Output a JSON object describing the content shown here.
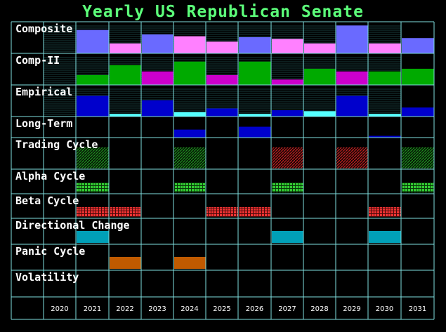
{
  "chart_data": {
    "type": "heatmap",
    "title": "Yearly US Republican Senate",
    "years": [
      "2020",
      "2021",
      "2022",
      "2023",
      "2024",
      "2025",
      "2026",
      "2027",
      "2028",
      "2029",
      "2030",
      "2031"
    ],
    "rows": [
      {
        "name": "Composite",
        "kind": "bar",
        "colors": [
          "#6a6aff",
          "#ff80ff"
        ],
        "values": [
          null,
          2.6,
          1.1,
          2.1,
          1.9,
          1.3,
          1.8,
          1.6,
          1.1,
          3.1,
          1.1,
          1.7
        ],
        "color_index": [
          null,
          0,
          1,
          0,
          1,
          1,
          0,
          1,
          1,
          0,
          1,
          0
        ]
      },
      {
        "name": "Comp-II",
        "kind": "bar",
        "colors": [
          "#00aa00",
          "#cc00cc"
        ],
        "values": [
          null,
          1.1,
          2.2,
          1.5,
          2.6,
          1.1,
          2.6,
          0.6,
          1.8,
          1.5,
          1.5,
          1.8
        ],
        "color_index": [
          null,
          0,
          0,
          1,
          0,
          1,
          0,
          1,
          0,
          1,
          0,
          0
        ]
      },
      {
        "name": "Empirical",
        "kind": "bar",
        "colors": [
          "#0000cc",
          "#55ffff"
        ],
        "values": [
          null,
          2.3,
          0.3,
          1.8,
          0.5,
          0.9,
          0.3,
          0.7,
          0.6,
          2.3,
          0.3,
          1.0
        ],
        "color_index": [
          null,
          0,
          1,
          0,
          1,
          0,
          1,
          0,
          1,
          0,
          1,
          0
        ]
      },
      {
        "name": "Long-Term",
        "kind": "bar",
        "colors": [
          "#0000cc"
        ],
        "values": [
          null,
          0,
          0,
          0,
          1.4,
          0,
          1.9,
          0,
          0,
          0,
          0.3,
          0
        ],
        "color_index": [
          null,
          0,
          0,
          0,
          0,
          0,
          0,
          0,
          0,
          0,
          0,
          0
        ]
      },
      {
        "name": "Trading Cycle",
        "kind": "pattern",
        "style": "hatch",
        "active": [
          0,
          1,
          0,
          0,
          1,
          0,
          0,
          2,
          0,
          2,
          0,
          1
        ],
        "colors": [
          "",
          "#1f8f1f",
          "#c02020"
        ]
      },
      {
        "name": "Alpha Cycle",
        "kind": "pattern",
        "style": "grid",
        "active": [
          0,
          1,
          0,
          0,
          1,
          0,
          0,
          1,
          0,
          0,
          0,
          1
        ],
        "colors": [
          "",
          "#33cc33"
        ]
      },
      {
        "name": "Beta Cycle",
        "kind": "pattern",
        "style": "grid",
        "active": [
          0,
          1,
          1,
          0,
          0,
          1,
          1,
          0,
          0,
          0,
          1,
          0
        ],
        "colors": [
          "",
          "#ee3333"
        ]
      },
      {
        "name": "Directional Change",
        "kind": "block",
        "active": [
          0,
          1,
          0,
          0,
          0,
          0,
          0,
          1,
          0,
          0,
          1,
          0
        ],
        "colors": [
          "",
          "#00a0b8"
        ]
      },
      {
        "name": "Panic Cycle",
        "kind": "block",
        "active": [
          0,
          0,
          1,
          0,
          1,
          0,
          0,
          0,
          0,
          0,
          0,
          0
        ],
        "colors": [
          "",
          "#c05a00"
        ]
      },
      {
        "name": "Volatility",
        "kind": "block",
        "active": [
          0,
          0,
          0,
          0,
          0,
          0,
          0,
          0,
          0,
          0,
          0,
          0
        ],
        "colors": [
          ""
        ]
      }
    ],
    "grid": true
  }
}
